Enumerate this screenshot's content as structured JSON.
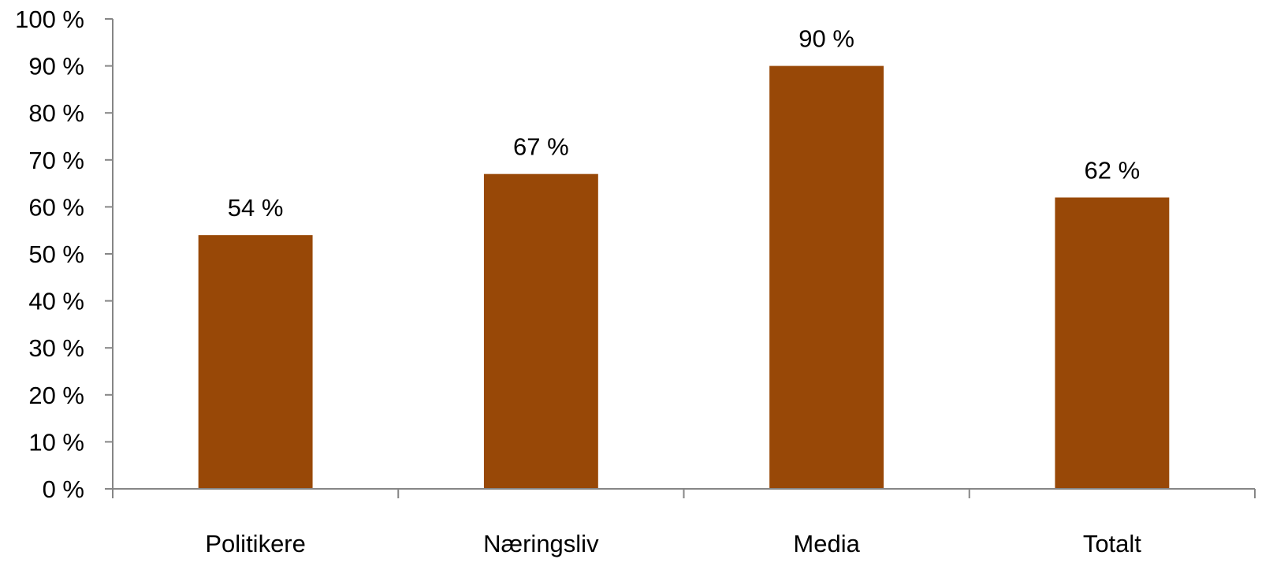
{
  "chart_data": {
    "type": "bar",
    "categories": [
      "Politikere",
      "Næringsliv",
      "Media",
      "Totalt"
    ],
    "values": [
      54,
      67,
      90,
      62
    ],
    "data_labels": [
      "54 %",
      "67 %",
      "90 %",
      "62 %"
    ],
    "ylim": [
      0,
      100
    ],
    "yticks": [
      0,
      10,
      20,
      30,
      40,
      50,
      60,
      70,
      80,
      90,
      100
    ],
    "ytick_labels": [
      "0 %",
      "10 %",
      "20 %",
      "30 %",
      "40 %",
      "50 %",
      "60 %",
      "70 %",
      "80 %",
      "90 %",
      "100 %"
    ],
    "grid": false,
    "legend": "none",
    "bar_color": "#984807",
    "axis_color": "#868686"
  }
}
